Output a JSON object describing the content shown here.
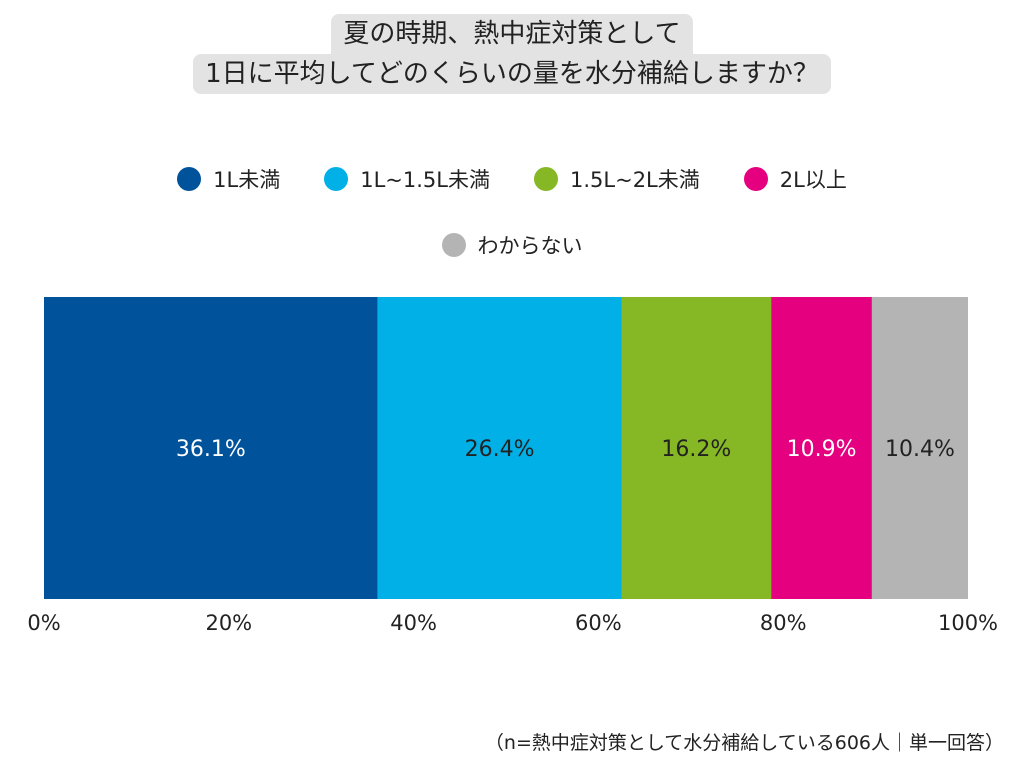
{
  "title": {
    "line1": "夏の時期、熱中症対策として",
    "line2": "1日に平均してどのくらいの量を水分補給しますか？"
  },
  "legend": [
    {
      "label": "1L未満",
      "color": "#00539a"
    },
    {
      "label": "1L~1.5L未満",
      "color": "#00b0e6"
    },
    {
      "label": "1.5L~2L未満",
      "color": "#86b725"
    },
    {
      "label": "2L以上",
      "color": "#e4007f"
    },
    {
      "label": "わからない",
      "color": "#b4b4b4"
    }
  ],
  "footnote": "（n=熱中症対策として水分補給している606人｜単一回答）",
  "chart_data": {
    "type": "bar",
    "orientation": "horizontal-stacked-100",
    "series": [
      {
        "name": "1L未満",
        "value": 36.1,
        "label": "36.1%",
        "color": "#00539a",
        "label_color": "#ffffff"
      },
      {
        "name": "1L~1.5L未満",
        "value": 26.4,
        "label": "26.4%",
        "color": "#00b0e6",
        "label_color": "#222222"
      },
      {
        "name": "1.5L~2L未満",
        "value": 16.2,
        "label": "16.2%",
        "color": "#86b725",
        "label_color": "#222222"
      },
      {
        "name": "2L以上",
        "value": 10.9,
        "label": "10.9%",
        "color": "#e4007f",
        "label_color": "#ffffff"
      },
      {
        "name": "わからない",
        "value": 10.4,
        "label": "10.4%",
        "color": "#b4b4b4",
        "label_color": "#222222"
      }
    ],
    "xlim": [
      0,
      100
    ],
    "x_ticks": [
      "0%",
      "20%",
      "40%",
      "60%",
      "80%",
      "100%"
    ],
    "x_tick_values": [
      0,
      20,
      40,
      60,
      80,
      100
    ],
    "grid": false
  }
}
